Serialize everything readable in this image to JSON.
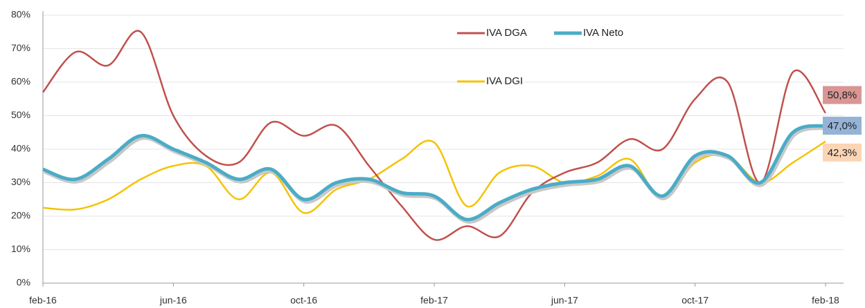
{
  "chart_data": {
    "type": "line",
    "categories": [
      "feb-16",
      null,
      null,
      null,
      "jun-16",
      null,
      null,
      null,
      "oct-16",
      null,
      null,
      null,
      "feb-17",
      null,
      null,
      null,
      "jun-17",
      null,
      null,
      null,
      "oct-17",
      null,
      null,
      null,
      "feb-18"
    ],
    "series": [
      {
        "name": "IVA DGA",
        "color": "#c0504d",
        "label_color": "#d99694",
        "values": [
          57,
          69,
          65,
          75,
          50,
          38,
          36,
          48,
          44,
          47,
          35,
          23,
          13,
          17,
          14,
          27,
          33,
          36,
          43,
          40,
          55,
          60,
          30,
          63,
          50.8
        ],
        "value_labels": [
          null,
          null,
          null,
          null,
          null,
          null,
          null,
          null,
          null,
          null,
          null,
          null,
          null,
          null,
          null,
          null,
          null,
          null,
          null,
          null,
          null,
          null,
          null,
          null,
          "50,8%"
        ]
      },
      {
        "name": "IVA Neto",
        "color": "#4bacc6",
        "label_color": "#95b3d7",
        "values": [
          34,
          31,
          37,
          44,
          40,
          36,
          31,
          34,
          25,
          30,
          31,
          27,
          26,
          19,
          24,
          28,
          30,
          31,
          35,
          26,
          38,
          38,
          30,
          45,
          47.0
        ],
        "value_labels": [
          null,
          null,
          null,
          null,
          null,
          null,
          null,
          null,
          null,
          null,
          null,
          null,
          null,
          null,
          null,
          null,
          null,
          null,
          null,
          null,
          null,
          null,
          null,
          null,
          "47,0%"
        ]
      },
      {
        "name": "IVA DGI",
        "color": "#f5c200",
        "label_color": "#fbd5b5",
        "values": [
          22.5,
          22,
          25,
          31,
          35,
          35,
          25,
          33,
          21,
          28,
          31,
          37,
          42,
          23,
          33,
          35,
          30,
          32,
          37,
          25,
          36,
          38,
          30,
          36,
          42.3
        ],
        "value_labels": [
          null,
          null,
          null,
          null,
          null,
          null,
          null,
          null,
          null,
          null,
          null,
          null,
          null,
          null,
          null,
          null,
          null,
          null,
          null,
          null,
          null,
          null,
          null,
          null,
          "42,3%"
        ]
      }
    ],
    "ylim": [
      0,
      80
    ],
    "yticks": [
      {
        "value": 0,
        "label": "0%"
      },
      {
        "value": 10,
        "label": "10%"
      },
      {
        "value": 20,
        "label": "20%"
      },
      {
        "value": 30,
        "label": "30%"
      },
      {
        "value": 40,
        "label": "40%"
      },
      {
        "value": 50,
        "label": "50%"
      },
      {
        "value": 60,
        "label": "60%"
      },
      {
        "value": 70,
        "label": "70%"
      },
      {
        "value": 80,
        "label": "80%"
      }
    ],
    "grid": true
  }
}
